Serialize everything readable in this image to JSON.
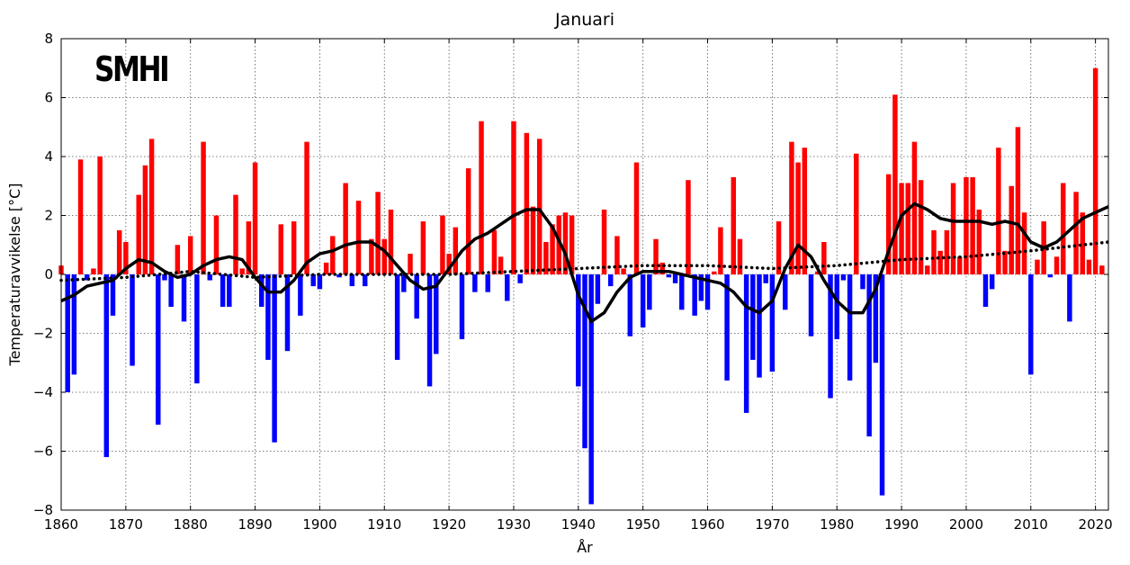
{
  "logo_text": "SMHI",
  "chart_data": {
    "type": "bar",
    "title": "Januari",
    "xlabel": "År",
    "ylabel": "Temperaturavvikelse [°C]",
    "xlim": [
      1860,
      2022
    ],
    "ylim": [
      -8,
      8
    ],
    "xticks": [
      1860,
      1870,
      1880,
      1890,
      1900,
      1910,
      1920,
      1930,
      1940,
      1950,
      1960,
      1970,
      1980,
      1990,
      2000,
      2010,
      2020
    ],
    "yticks": [
      -8,
      -6,
      -4,
      -2,
      0,
      2,
      4,
      6,
      8
    ],
    "grid": true,
    "colors": {
      "positive": "#ff0000",
      "negative": "#0000ff",
      "smooth": "#000000",
      "trend": "#000000"
    },
    "start_year": 1860,
    "values": [
      0.3,
      -4.0,
      -3.4,
      3.9,
      -0.2,
      0.2,
      4.0,
      -6.2,
      -1.4,
      1.5,
      1.1,
      -3.1,
      2.7,
      3.7,
      4.6,
      -5.1,
      -0.2,
      -1.1,
      1.0,
      -1.6,
      1.3,
      -3.7,
      4.5,
      -0.2,
      2.0,
      -1.1,
      -1.1,
      2.7,
      0.2,
      1.8,
      3.8,
      -1.1,
      -2.9,
      -5.7,
      1.7,
      -2.6,
      1.8,
      -1.4,
      4.5,
      -0.4,
      -0.5,
      0.4,
      1.3,
      -0.1,
      3.1,
      -0.4,
      2.5,
      -0.4,
      1.2,
      2.8,
      1.2,
      2.2,
      -2.9,
      -0.6,
      0.7,
      -1.5,
      1.8,
      -3.8,
      -2.7,
      2.0,
      0.7,
      1.6,
      -2.2,
      3.6,
      -0.6,
      5.2,
      -0.6,
      1.5,
      0.6,
      -0.9,
      5.2,
      -0.3,
      4.8,
      2.3,
      4.6,
      1.1,
      1.7,
      2.0,
      2.1,
      2.0,
      -3.8,
      -5.9,
      -7.8,
      -1.0,
      2.2,
      -0.4,
      1.3,
      0.2,
      -2.1,
      3.8,
      -1.8,
      -1.2,
      1.2,
      0.4,
      -0.1,
      -0.3,
      -1.2,
      3.2,
      -1.4,
      -0.9,
      -1.2,
      0.1,
      1.6,
      -3.6,
      3.3,
      1.2,
      -4.7,
      -2.9,
      -3.5,
      -0.3,
      -3.3,
      1.8,
      -1.2,
      4.5,
      3.8,
      4.3,
      -2.1,
      0.1,
      1.1,
      -4.2,
      -2.2,
      -0.2,
      -3.6,
      4.1,
      -0.5,
      -5.5,
      -3.0,
      -7.5,
      3.4,
      6.1,
      3.1,
      3.1,
      4.5,
      3.2,
      0.3,
      1.5,
      0.8,
      1.5,
      3.1,
      0.6,
      3.3,
      3.3,
      2.2,
      -1.1,
      -0.5,
      4.3,
      0.8,
      3.0,
      5.0,
      2.1,
      -3.4,
      0.5,
      1.8,
      -0.1,
      0.6,
      3.1,
      -1.6,
      2.8,
      2.1,
      0.5,
      7.0,
      0.3
    ],
    "smoothed": [
      [
        1860,
        -0.9
      ],
      [
        1862,
        -0.7
      ],
      [
        1864,
        -0.4
      ],
      [
        1866,
        -0.3
      ],
      [
        1868,
        -0.2
      ],
      [
        1870,
        0.2
      ],
      [
        1872,
        0.5
      ],
      [
        1874,
        0.4
      ],
      [
        1876,
        0.1
      ],
      [
        1878,
        -0.1
      ],
      [
        1880,
        0.0
      ],
      [
        1882,
        0.3
      ],
      [
        1884,
        0.5
      ],
      [
        1886,
        0.6
      ],
      [
        1888,
        0.5
      ],
      [
        1890,
        -0.1
      ],
      [
        1892,
        -0.6
      ],
      [
        1894,
        -0.6
      ],
      [
        1896,
        -0.2
      ],
      [
        1898,
        0.4
      ],
      [
        1900,
        0.7
      ],
      [
        1902,
        0.8
      ],
      [
        1904,
        1.0
      ],
      [
        1906,
        1.1
      ],
      [
        1908,
        1.1
      ],
      [
        1910,
        0.8
      ],
      [
        1912,
        0.3
      ],
      [
        1914,
        -0.2
      ],
      [
        1916,
        -0.5
      ],
      [
        1918,
        -0.4
      ],
      [
        1920,
        0.2
      ],
      [
        1922,
        0.8
      ],
      [
        1924,
        1.2
      ],
      [
        1926,
        1.4
      ],
      [
        1928,
        1.7
      ],
      [
        1930,
        2.0
      ],
      [
        1932,
        2.2
      ],
      [
        1934,
        2.2
      ],
      [
        1936,
        1.6
      ],
      [
        1938,
        0.7
      ],
      [
        1940,
        -0.7
      ],
      [
        1942,
        -1.6
      ],
      [
        1944,
        -1.3
      ],
      [
        1946,
        -0.6
      ],
      [
        1948,
        -0.1
      ],
      [
        1950,
        0.1
      ],
      [
        1952,
        0.1
      ],
      [
        1954,
        0.1
      ],
      [
        1956,
        0.0
      ],
      [
        1958,
        -0.1
      ],
      [
        1960,
        -0.2
      ],
      [
        1962,
        -0.3
      ],
      [
        1964,
        -0.6
      ],
      [
        1966,
        -1.1
      ],
      [
        1968,
        -1.3
      ],
      [
        1970,
        -0.9
      ],
      [
        1972,
        0.2
      ],
      [
        1974,
        1.0
      ],
      [
        1976,
        0.6
      ],
      [
        1978,
        -0.2
      ],
      [
        1980,
        -0.9
      ],
      [
        1982,
        -1.3
      ],
      [
        1984,
        -1.3
      ],
      [
        1986,
        -0.5
      ],
      [
        1988,
        0.8
      ],
      [
        1990,
        2.0
      ],
      [
        1992,
        2.4
      ],
      [
        1994,
        2.2
      ],
      [
        1996,
        1.9
      ],
      [
        1998,
        1.8
      ],
      [
        2000,
        1.8
      ],
      [
        2002,
        1.8
      ],
      [
        2004,
        1.7
      ],
      [
        2006,
        1.8
      ],
      [
        2008,
        1.7
      ],
      [
        2010,
        1.1
      ],
      [
        2012,
        0.9
      ],
      [
        2014,
        1.1
      ],
      [
        2016,
        1.5
      ],
      [
        2018,
        1.9
      ],
      [
        2020,
        2.1
      ],
      [
        2022,
        2.3
      ]
    ],
    "trend": [
      [
        1860,
        -0.2
      ],
      [
        1870,
        -0.1
      ],
      [
        1880,
        0.1
      ],
      [
        1890,
        -0.1
      ],
      [
        1900,
        0.0
      ],
      [
        1910,
        0.0
      ],
      [
        1920,
        0.0
      ],
      [
        1930,
        0.1
      ],
      [
        1940,
        0.2
      ],
      [
        1950,
        0.3
      ],
      [
        1960,
        0.3
      ],
      [
        1970,
        0.2
      ],
      [
        1980,
        0.3
      ],
      [
        1990,
        0.5
      ],
      [
        2000,
        0.6
      ],
      [
        2010,
        0.8
      ],
      [
        2022,
        1.1
      ]
    ]
  }
}
